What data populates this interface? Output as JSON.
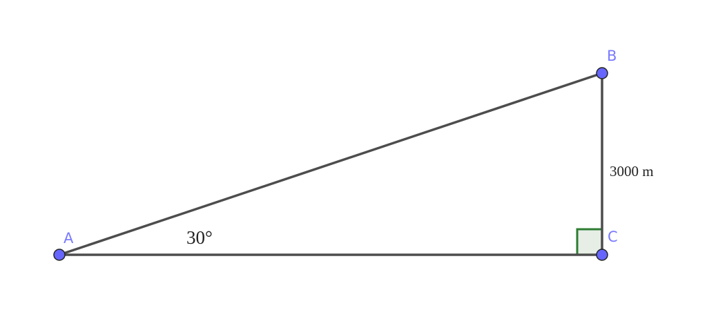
{
  "points": {
    "A": "A",
    "B": "B",
    "C": "C"
  },
  "angle_label": "30°",
  "side_label": "3000 m",
  "colors": {
    "segment": "#4d4d4d",
    "point_fill": "#6666ff",
    "point_label": "#7a7aff",
    "right_angle_stroke": "#2e7d32",
    "right_angle_fill": "#e6eee6"
  }
}
